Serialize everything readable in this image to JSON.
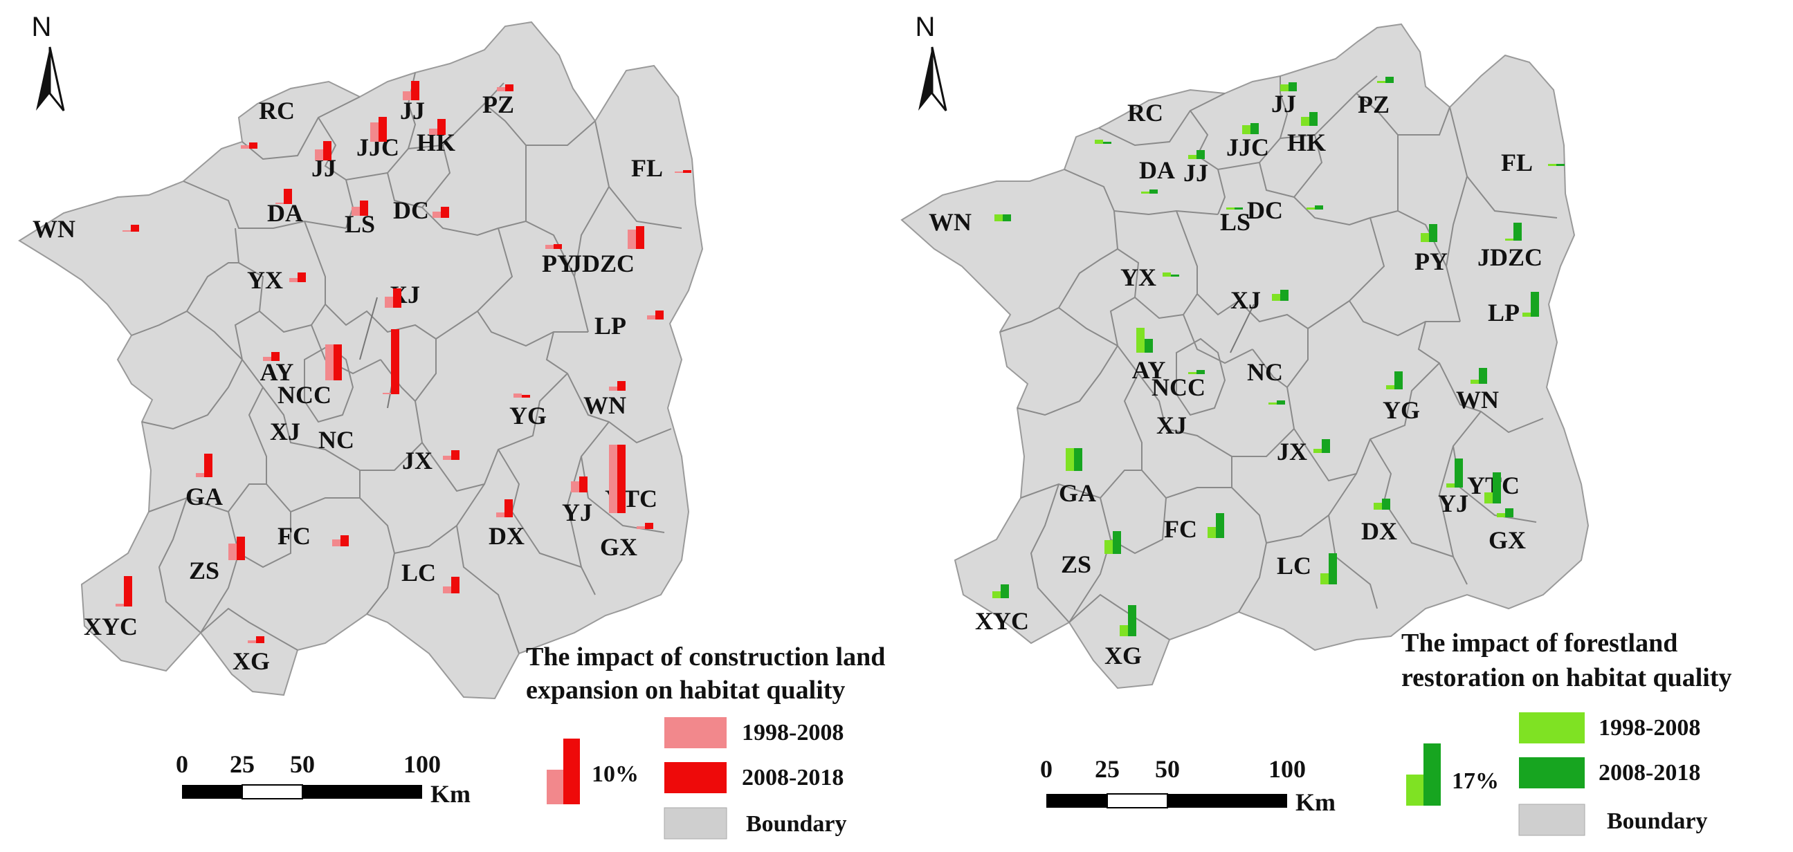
{
  "colors": {
    "region_fill": "#d9d9d9",
    "boundary_stroke": "#9a9a9a",
    "construction_early": "#f2888c",
    "construction_late": "#ee0a0a",
    "forest_early": "#7fe223",
    "forest_late": "#17a520",
    "legend_boundary": "#cfcfcf"
  },
  "maps": [
    {
      "id": "construction",
      "north_label": "N",
      "legend_title_line1": "The impact of construction land",
      "legend_title_line2": "expansion on habitat quality",
      "legend_period_1": "1998-2008",
      "legend_period_2": "2008-2018",
      "legend_boundary": "Boundary",
      "legend_reference_value": "10%",
      "scale_ticks": [
        "0",
        "25",
        "50",
        "100"
      ],
      "scale_unit": "Km",
      "counties": [
        {
          "name": "RC",
          "v1": 0.5,
          "v2": 0.9
        },
        {
          "name": "JJ",
          "v1": 1.3,
          "v2": 2.8
        },
        {
          "name": "PZ",
          "v1": 0.6,
          "v2": 1.0
        },
        {
          "name": "JJC",
          "v1": 2.8,
          "v2": 3.6
        },
        {
          "name": "HK",
          "v1": 0.9,
          "v2": 2.3
        },
        {
          "name": "JJ",
          "v1": 1.6,
          "v2": 2.8
        },
        {
          "name": "FL",
          "v1": 0.2,
          "v2": 0.4
        },
        {
          "name": "DA",
          "v1": 0.2,
          "v2": 2.2
        },
        {
          "name": "LS",
          "v1": 1.3,
          "v2": 2.2
        },
        {
          "name": "DC",
          "v1": 0.9,
          "v2": 1.6
        },
        {
          "name": "WN",
          "v1": 0.2,
          "v2": 1.0
        },
        {
          "name": "PY",
          "v1": 0.6,
          "v2": 0.7
        },
        {
          "name": "JDZC",
          "v1": 2.8,
          "v2": 3.3
        },
        {
          "name": "YX",
          "v1": 0.6,
          "v2": 1.4
        },
        {
          "name": "XJ",
          "v1": 1.6,
          "v2": 2.8
        },
        {
          "name": "LP",
          "v1": 0.6,
          "v2": 1.3
        },
        {
          "name": "AY",
          "v1": 0.6,
          "v2": 1.3
        },
        {
          "name": "NCC",
          "v1": 5.2,
          "v2": 5.2
        },
        {
          "name": "NC",
          "v1": 0.2,
          "v2": 9.4
        },
        {
          "name": "YG",
          "v1": 0.6,
          "v2": 0.4
        },
        {
          "name": "WN",
          "v1": 0.6,
          "v2": 1.4
        },
        {
          "name": "XJ",
          "v1": 0,
          "v2": 0
        },
        {
          "name": "JX",
          "v1": 0.6,
          "v2": 1.4
        },
        {
          "name": "GA",
          "v1": 0.6,
          "v2": 3.4
        },
        {
          "name": "FC",
          "v1": 1.0,
          "v2": 1.6
        },
        {
          "name": "DX",
          "v1": 0.7,
          "v2": 2.6
        },
        {
          "name": "YJ",
          "v1": 1.6,
          "v2": 2.3
        },
        {
          "name": "YTC",
          "v1": 9.9,
          "v2": 9.9
        },
        {
          "name": "GX",
          "v1": 0.4,
          "v2": 0.9
        },
        {
          "name": "ZS",
          "v1": 2.4,
          "v2": 3.4
        },
        {
          "name": "LC",
          "v1": 1.0,
          "v2": 2.4
        },
        {
          "name": "XYC",
          "v1": 0.4,
          "v2": 4.4
        },
        {
          "name": "XG",
          "v1": 0.4,
          "v2": 1.0
        }
      ]
    },
    {
      "id": "forest",
      "north_label": "N",
      "legend_title_line1": "The impact of forestland",
      "legend_title_line2": "restoration on habitat quality",
      "legend_period_1": "1998-2008",
      "legend_period_2": "2008-2018",
      "legend_boundary": "Boundary",
      "legend_reference_value": "17%",
      "scale_ticks": [
        "0",
        "25",
        "50",
        "100"
      ],
      "scale_unit": "Km",
      "counties": [
        {
          "name": "RC",
          "v1": 0.6,
          "v2": 0.3
        },
        {
          "name": "JJ",
          "v1": 1.0,
          "v2": 1.3
        },
        {
          "name": "PZ",
          "v1": 0.3,
          "v2": 0.9
        },
        {
          "name": "JJC",
          "v1": 1.3,
          "v2": 1.6
        },
        {
          "name": "HK",
          "v1": 1.3,
          "v2": 2.0
        },
        {
          "name": "JJ",
          "v1": 0.6,
          "v2": 1.3
        },
        {
          "name": "DA",
          "v1": 0.3,
          "v2": 0.6
        },
        {
          "name": "FL",
          "v1": 0.3,
          "v2": 0.3
        },
        {
          "name": "LS",
          "v1": 0.3,
          "v2": 0.3
        },
        {
          "name": "DC",
          "v1": 0.3,
          "v2": 0.6
        },
        {
          "name": "WN",
          "v1": 1.0,
          "v2": 1.0
        },
        {
          "name": "PY",
          "v1": 1.3,
          "v2": 2.6
        },
        {
          "name": "JDZC",
          "v1": 0.3,
          "v2": 2.6
        },
        {
          "name": "YX",
          "v1": 0.6,
          "v2": 0.3
        },
        {
          "name": "LP",
          "v1": 0.6,
          "v2": 3.6
        },
        {
          "name": "XJ",
          "v1": 1.0,
          "v2": 1.6
        },
        {
          "name": "AY",
          "v1": 3.6,
          "v2": 2.0
        },
        {
          "name": "NCC",
          "v1": 0.3,
          "v2": 0.6
        },
        {
          "name": "NC",
          "v1": 0.3,
          "v2": 0.6
        },
        {
          "name": "YG",
          "v1": 0.6,
          "v2": 2.6
        },
        {
          "name": "WN",
          "v1": 0.6,
          "v2": 2.3
        },
        {
          "name": "XJ",
          "v1": 0,
          "v2": 0
        },
        {
          "name": "JX",
          "v1": 0.6,
          "v2": 2.0
        },
        {
          "name": "GA",
          "v1": 3.3,
          "v2": 3.3
        },
        {
          "name": "FC",
          "v1": 1.6,
          "v2": 3.6
        },
        {
          "name": "DX",
          "v1": 1.0,
          "v2": 1.6
        },
        {
          "name": "YJ",
          "v1": 0.6,
          "v2": 4.2
        },
        {
          "name": "YTC",
          "v1": 1.6,
          "v2": 4.5
        },
        {
          "name": "GX",
          "v1": 0.6,
          "v2": 1.3
        },
        {
          "name": "ZS",
          "v1": 2.0,
          "v2": 3.3
        },
        {
          "name": "LC",
          "v1": 1.6,
          "v2": 4.5
        },
        {
          "name": "XYC",
          "v1": 1.0,
          "v2": 2.0
        },
        {
          "name": "XG",
          "v1": 1.6,
          "v2": 4.5
        }
      ]
    }
  ]
}
